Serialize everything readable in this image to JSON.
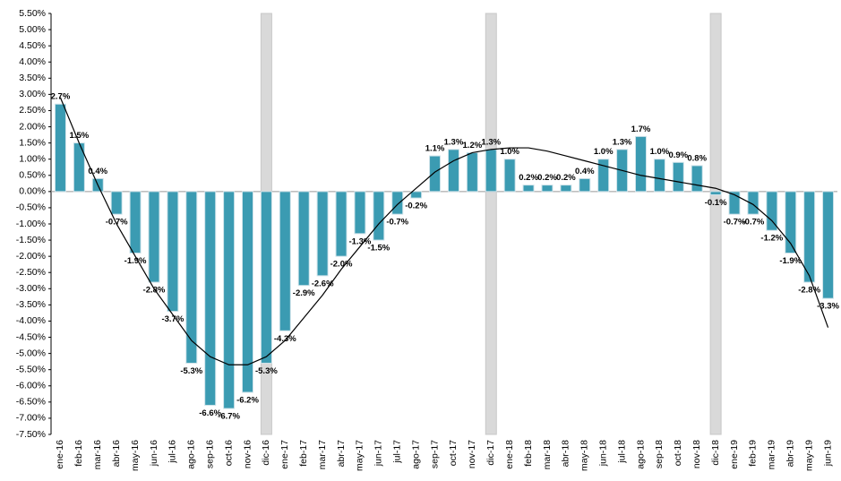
{
  "chart_data": {
    "type": "bar",
    "categories": [
      "ene-16",
      "feb-16",
      "mar-16",
      "abr-16",
      "may-16",
      "jun-16",
      "jul-16",
      "ago-16",
      "sep-16",
      "oct-16",
      "nov-16",
      "dic-16",
      "ene-17",
      "feb-17",
      "mar-17",
      "abr-17",
      "may-17",
      "jun-17",
      "jul-17",
      "ago-17",
      "sep-17",
      "oct-17",
      "nov-17",
      "dic-17",
      "ene-18",
      "feb-18",
      "mar-18",
      "abr-18",
      "may-18",
      "jun-18",
      "jul-18",
      "ago-18",
      "sep-18",
      "oct-18",
      "nov-18",
      "dic-18",
      "ene-19",
      "feb-19",
      "mar-19",
      "abr-19",
      "may-19",
      "jun-19"
    ],
    "values": [
      2.7,
      1.5,
      0.4,
      -0.7,
      -1.9,
      -2.8,
      -3.7,
      -5.3,
      -6.6,
      -6.7,
      -6.2,
      -5.3,
      -4.3,
      -2.9,
      -2.6,
      -2.0,
      -1.3,
      -1.5,
      -0.7,
      -0.2,
      1.1,
      1.3,
      1.2,
      1.3,
      1.0,
      0.2,
      0.2,
      0.2,
      0.4,
      1.0,
      1.3,
      1.7,
      1.0,
      0.9,
      0.8,
      -0.1,
      -0.7,
      -0.7,
      -1.2,
      -1.9,
      -2.8,
      -3.3
    ],
    "value_labels": [
      "2.7%",
      "1.5%",
      "0.4%",
      "-0.7%",
      "-1.9%",
      "-2.8%",
      "-3.7%",
      "-5.3%",
      "-6.6%",
      "-6.7%",
      "-6.2%",
      "-5.3%",
      "-4.3%",
      "-2.9%",
      "-2.6%",
      "-2.0%",
      "-1.3%",
      "-1.5%",
      "-0.7%",
      "-0.2%",
      "1.1%",
      "1.3%",
      "1.2%",
      "1.3%",
      "1.0%",
      "0.2%",
      "0.2%",
      "0.2%",
      "0.4%",
      "1.0%",
      "1.3%",
      "1.7%",
      "1.0%",
      "0.9%",
      "0.8%",
      "-0.1%",
      "-0.7%",
      "-0.7%",
      "-1.2%",
      "-1.9%",
      "-2.8%",
      "-3.3%"
    ],
    "color": "#3b9bb2",
    "highlight": [
      "dic-16",
      "dic-17",
      "dic-18"
    ],
    "highlight_color": "#d9d9d9",
    "trendline": {
      "color": "#000000",
      "values": [
        2.9,
        1.5,
        0.2,
        -1.0,
        -2.0,
        -3.0,
        -3.8,
        -4.6,
        -5.1,
        -5.35,
        -5.35,
        -5.1,
        -4.6,
        -3.9,
        -3.2,
        -2.4,
        -1.7,
        -1.0,
        -0.4,
        0.1,
        0.6,
        0.95,
        1.2,
        1.3,
        1.35,
        1.35,
        1.25,
        1.1,
        0.95,
        0.8,
        0.65,
        0.5,
        0.4,
        0.3,
        0.2,
        0.1,
        -0.1,
        -0.4,
        -0.9,
        -1.6,
        -2.6,
        -4.2
      ]
    },
    "ylim": [
      -7.5,
      5.5
    ],
    "yticks": [
      {
        "value": 5.5,
        "label": "5.50%"
      },
      {
        "value": 5,
        "label": "5.00%"
      },
      {
        "value": 4.5,
        "label": "4.50%"
      },
      {
        "value": 4,
        "label": "4.00%"
      },
      {
        "value": 3.5,
        "label": "3.50%"
      },
      {
        "value": 3,
        "label": "3.00%"
      },
      {
        "value": 2.5,
        "label": "2.50%"
      },
      {
        "value": 2,
        "label": "2.00%"
      },
      {
        "value": 1.5,
        "label": "1.50%"
      },
      {
        "value": 1,
        "label": "1.00%"
      },
      {
        "value": 0.5,
        "label": "0.50%"
      },
      {
        "value": 0,
        "label": "0.00%"
      },
      {
        "value": -0.5,
        "label": "-0.50%"
      },
      {
        "value": -1,
        "label": "-1.00%"
      },
      {
        "value": -1.5,
        "label": "-1.50%"
      },
      {
        "value": -2,
        "label": "-2.00%"
      },
      {
        "value": -2.5,
        "label": "-2.50%"
      },
      {
        "value": -3,
        "label": "-3.00%"
      },
      {
        "value": -3.5,
        "label": "-3.50%"
      },
      {
        "value": -4,
        "label": "-4.00%"
      },
      {
        "value": -4.5,
        "label": "-4.50%"
      },
      {
        "value": -5,
        "label": "-5.00%"
      },
      {
        "value": -5.5,
        "label": "-5.50%"
      },
      {
        "value": -6,
        "label": "-6.00%"
      },
      {
        "value": -6.5,
        "label": "-6.50%"
      },
      {
        "value": -7,
        "label": "-7.00%"
      },
      {
        "value": -7.5,
        "label": "-7.50%"
      }
    ],
    "grid": false
  }
}
